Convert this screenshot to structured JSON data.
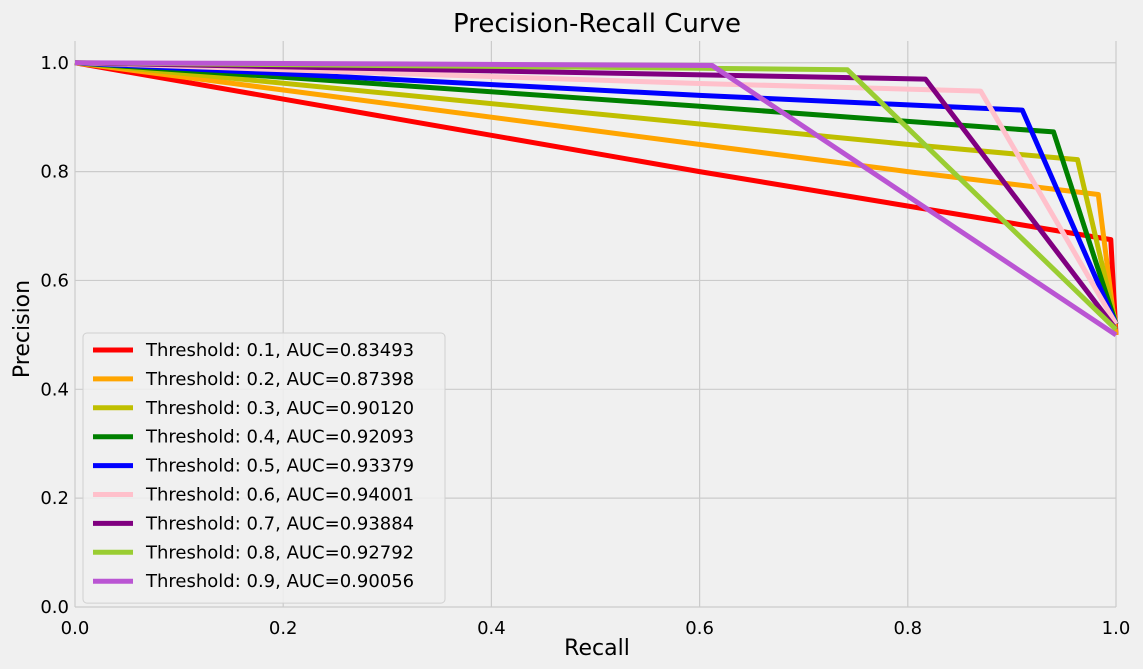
{
  "chart_data": {
    "type": "line",
    "title": "Precision-Recall Curve",
    "xlabel": "Recall",
    "ylabel": "Precision",
    "xlim": [
      0.0,
      1.0
    ],
    "ylim": [
      0.0,
      1.04
    ],
    "xticks": [
      0.0,
      0.2,
      0.4,
      0.6,
      0.8,
      1.0
    ],
    "xtick_labels": [
      "0.0",
      "0.2",
      "0.4",
      "0.6",
      "0.8",
      "1.0"
    ],
    "yticks": [
      0.0,
      0.2,
      0.4,
      0.6,
      0.8,
      1.0
    ],
    "ytick_labels": [
      "0.0",
      "0.2",
      "0.4",
      "0.6",
      "0.8",
      "1.0"
    ],
    "grid": true,
    "legend_position": "lower-left",
    "series": [
      {
        "name": "Threshold: 0.1, AUC=0.83493",
        "color": "#ff0000",
        "x": [
          0.0,
          0.6,
          0.995,
          1.0
        ],
        "y": [
          1.0,
          0.8,
          0.675,
          0.5
        ]
      },
      {
        "name": "Threshold: 0.2, AUC=0.87398",
        "color": "#ffa500",
        "x": [
          0.0,
          0.8,
          0.983,
          1.0
        ],
        "y": [
          1.0,
          0.8,
          0.758,
          0.5
        ]
      },
      {
        "name": "Threshold: 0.3, AUC=0.90120",
        "color": "#bfbf00",
        "x": [
          0.0,
          0.8,
          0.963,
          1.0
        ],
        "y": [
          1.0,
          0.85,
          0.822,
          0.52
        ]
      },
      {
        "name": "Threshold: 0.4, AUC=0.92093",
        "color": "#008000",
        "x": [
          0.0,
          0.6,
          0.94,
          1.0
        ],
        "y": [
          1.0,
          0.92,
          0.873,
          0.52
        ]
      },
      {
        "name": "Threshold: 0.5, AUC=0.93379",
        "color": "#0000ff",
        "x": [
          0.0,
          0.6,
          0.91,
          1.0
        ],
        "y": [
          1.0,
          0.94,
          0.913,
          0.52
        ]
      },
      {
        "name": "Threshold: 0.6, AUC=0.94001",
        "color": "#ffc0cb",
        "x": [
          0.0,
          0.6,
          0.87,
          1.0
        ],
        "y": [
          1.0,
          0.962,
          0.948,
          0.52
        ]
      },
      {
        "name": "Threshold: 0.7, AUC=0.93884",
        "color": "#800080",
        "x": [
          0.0,
          0.4,
          0.817,
          1.0
        ],
        "y": [
          1.0,
          0.985,
          0.97,
          0.51
        ]
      },
      {
        "name": "Threshold: 0.8, AUC=0.92792",
        "color": "#9acd32",
        "x": [
          0.0,
          0.6,
          0.742,
          1.0
        ],
        "y": [
          1.0,
          0.99,
          0.987,
          0.51
        ]
      },
      {
        "name": "Threshold: 0.9, AUC=0.90056",
        "color": "#ba55d3",
        "x": [
          0.0,
          0.3,
          0.612,
          1.0
        ],
        "y": [
          1.0,
          0.998,
          0.995,
          0.5
        ]
      }
    ]
  }
}
